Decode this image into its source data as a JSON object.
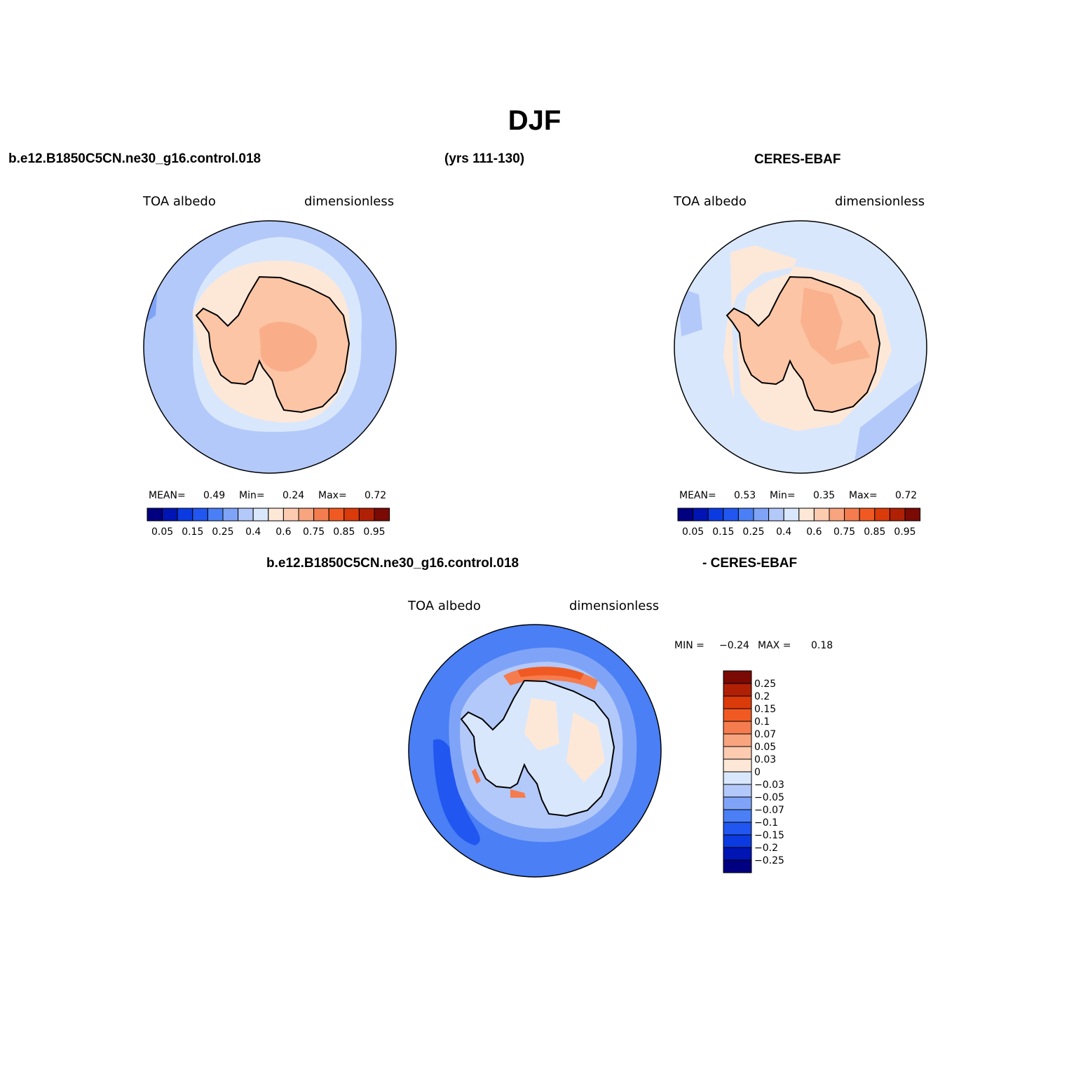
{
  "figure": {
    "season_title": "DJF",
    "case_name": "b.e12.B1850C5CN.ne30_g16.control.018",
    "years": "(yrs 111-130)",
    "obs_name": "CERES-EBAF",
    "diff_case_name": "b.e12.B1850C5CN.ne30_g16.control.018",
    "diff_obs_name": "- CERES-EBAF"
  },
  "colors": {
    "abs_scale": [
      "#000080",
      "#0015b3",
      "#0b3be0",
      "#2156f0",
      "#4a7ff5",
      "#7fa4f7",
      "#b3c9fa",
      "#d9e7fc",
      "#fde8d8",
      "#fccbb0",
      "#f8a47e",
      "#f57c4e",
      "#f05a22",
      "#db3a0a",
      "#b02005",
      "#7a0a03"
    ],
    "diff_scale": [
      "#000080",
      "#0015b3",
      "#0b3be0",
      "#2156f0",
      "#4a7ff5",
      "#7fa4f7",
      "#b3c9fa",
      "#d9e7fc",
      "#fde8d8",
      "#fccbb0",
      "#f8a47e",
      "#f57c4e",
      "#f05a22",
      "#db3a0a",
      "#b02005",
      "#7a0a03"
    ],
    "land": "#fcc5a6",
    "coast": "#000000"
  },
  "chart_data": [
    {
      "type": "heatmap",
      "panel": "model",
      "variable": "TOA albedo",
      "units": "dimensionless",
      "mean_label": "MEAN=",
      "mean": "0.49",
      "min_label": "Min=",
      "min": "0.24",
      "max_label": "Max=",
      "max": "0.72",
      "colorbar_ticks": [
        "0.05",
        "0.15",
        "0.25",
        "0.4",
        "0.6",
        "0.75",
        "0.85",
        "0.95"
      ],
      "projection": "south polar stereographic"
    },
    {
      "type": "heatmap",
      "panel": "observations",
      "variable": "TOA albedo",
      "units": "dimensionless",
      "mean_label": "MEAN=",
      "mean": "0.53",
      "min_label": "Min=",
      "min": "0.35",
      "max_label": "Max=",
      "max": "0.72",
      "colorbar_ticks": [
        "0.05",
        "0.15",
        "0.25",
        "0.4",
        "0.6",
        "0.75",
        "0.85",
        "0.95"
      ],
      "projection": "south polar stereographic"
    },
    {
      "type": "heatmap",
      "panel": "difference",
      "variable": "TOA albedo",
      "units": "dimensionless",
      "min_label": "MIN =",
      "min": "−0.24",
      "max_label": "MAX =",
      "max": "0.18",
      "colorbar_ticks": [
        "0.25",
        "0.2",
        "0.15",
        "0.1",
        "0.07",
        "0.05",
        "0.03",
        "0",
        "−0.03",
        "−0.05",
        "−0.07",
        "−0.1",
        "−0.15",
        "−0.2",
        "−0.25"
      ],
      "projection": "south polar stereographic"
    }
  ]
}
